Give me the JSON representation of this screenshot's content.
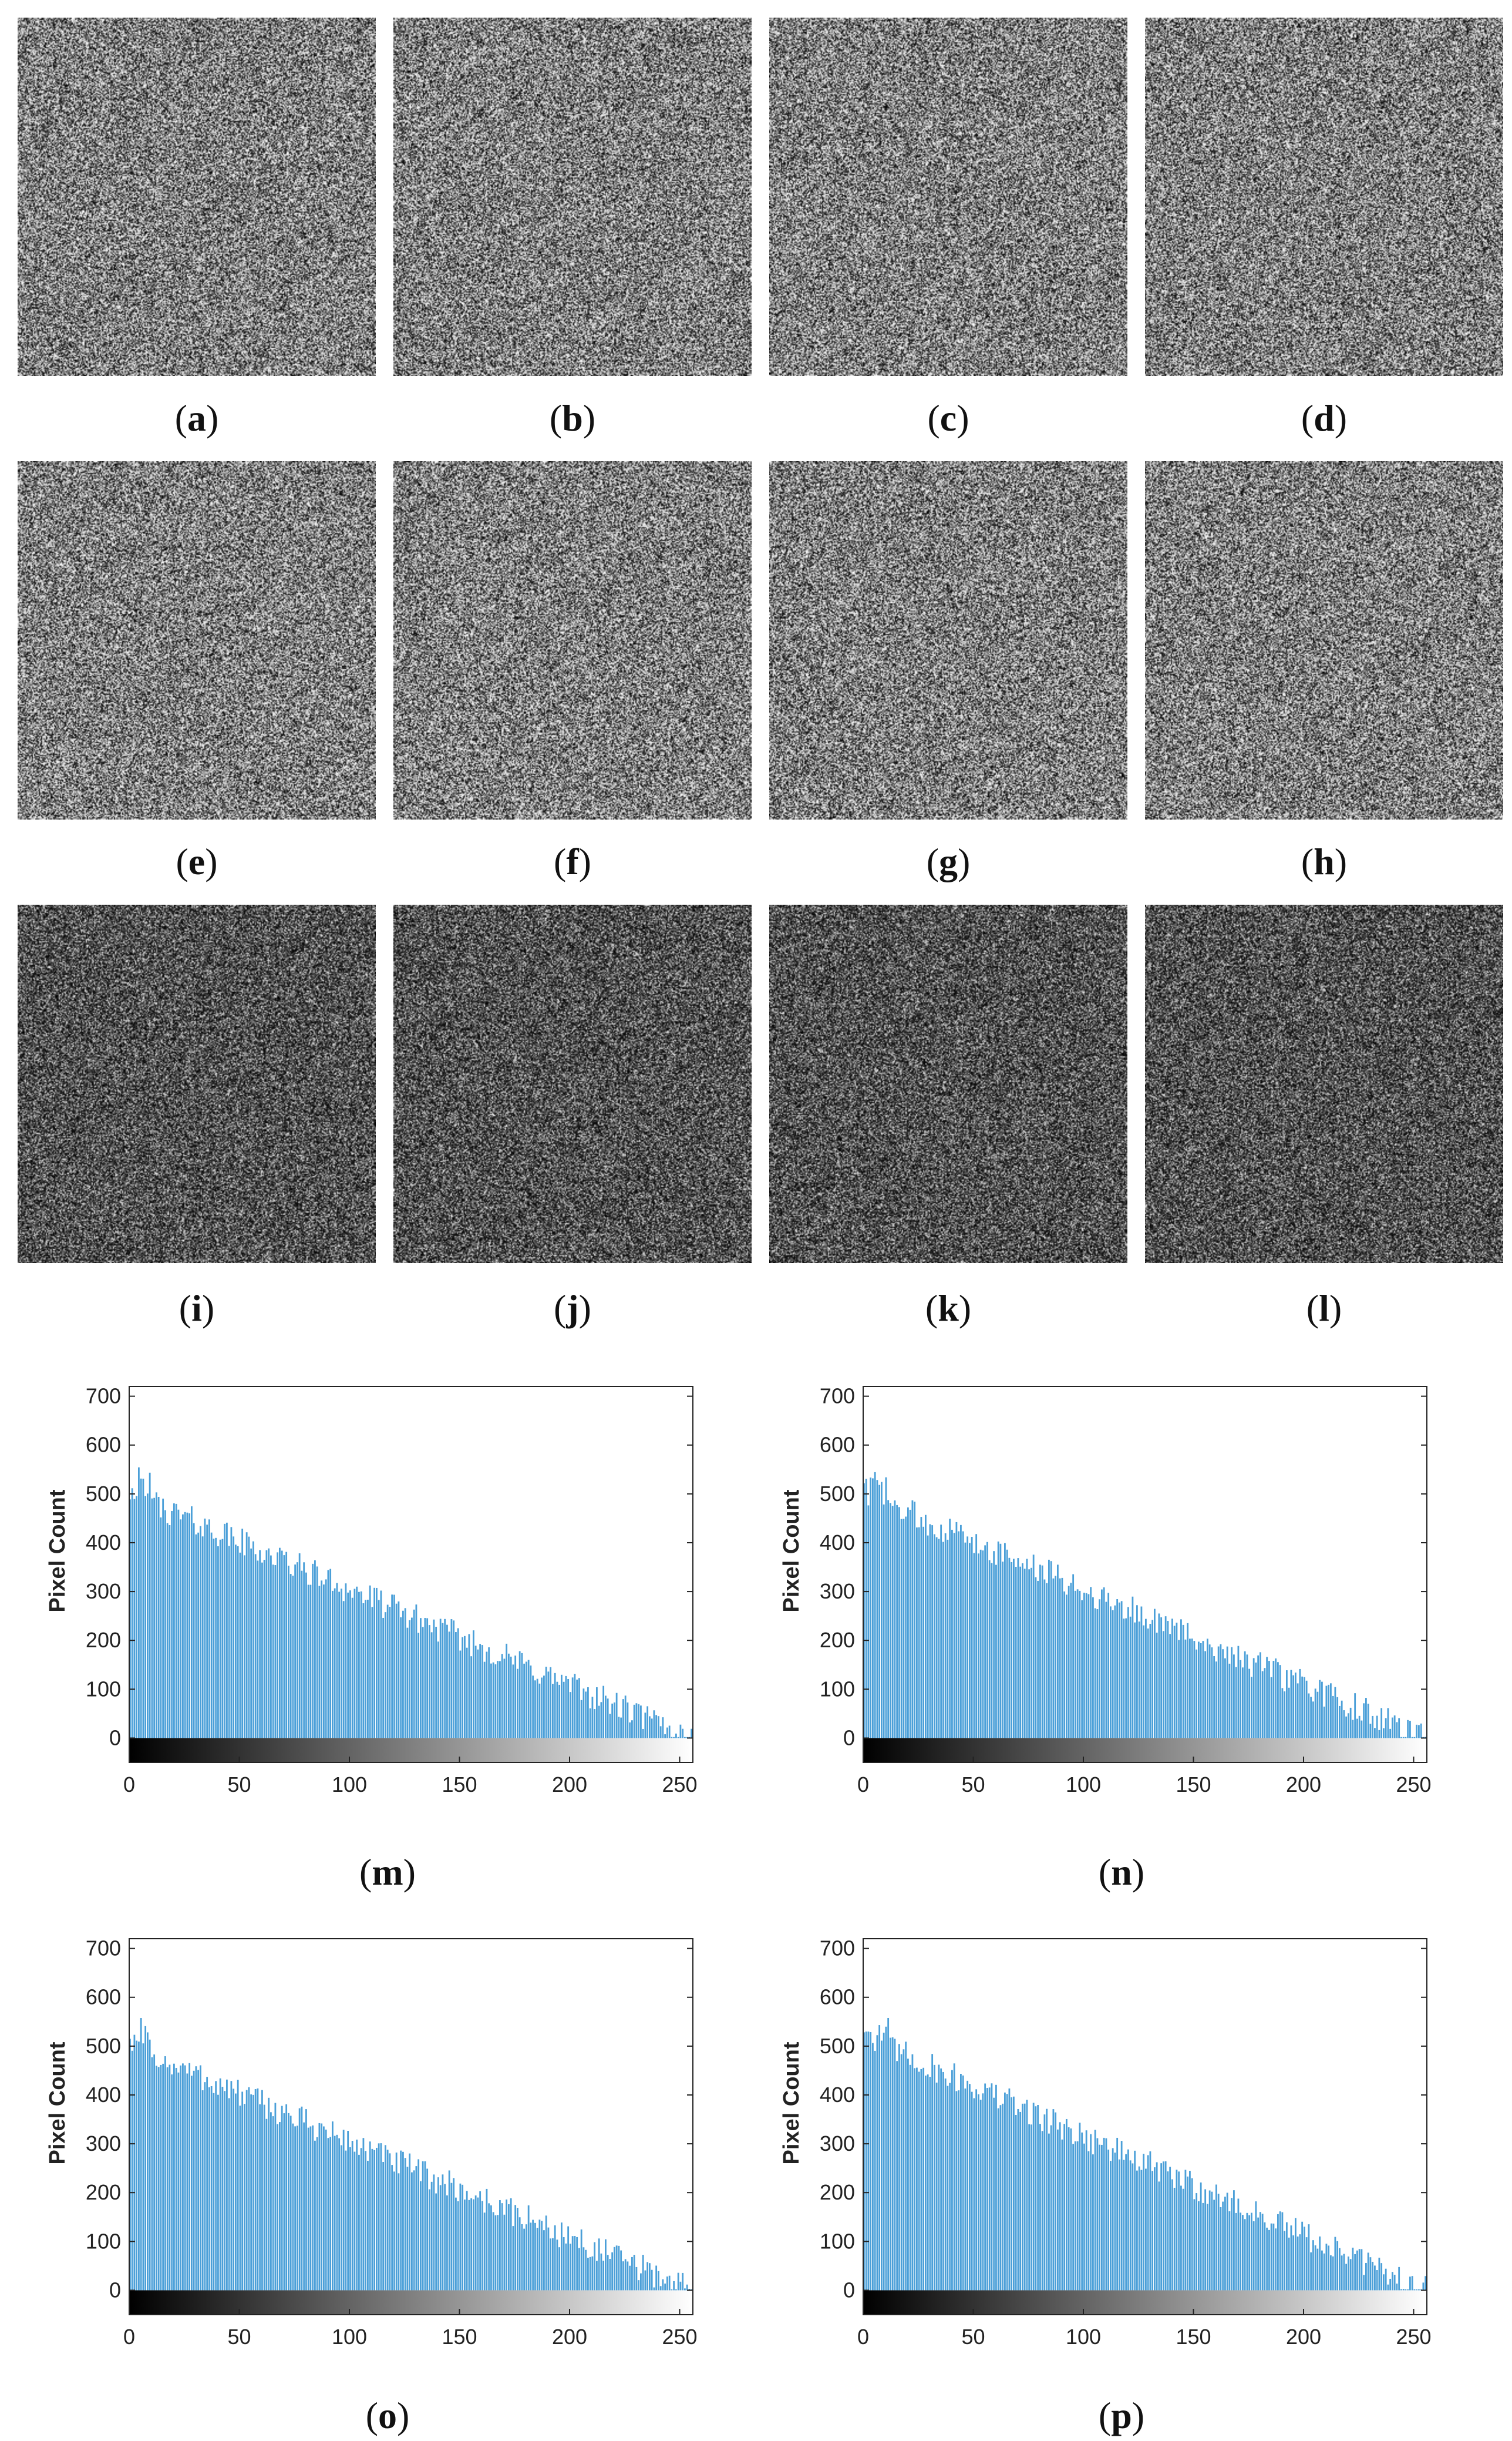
{
  "panels": [
    {
      "label": "a",
      "tone": "mid"
    },
    {
      "label": "b",
      "tone": "mid"
    },
    {
      "label": "c",
      "tone": "mid"
    },
    {
      "label": "d",
      "tone": "mid"
    },
    {
      "label": "e",
      "tone": "mid"
    },
    {
      "label": "f",
      "tone": "mid"
    },
    {
      "label": "g",
      "tone": "mid"
    },
    {
      "label": "h",
      "tone": "mid"
    },
    {
      "label": "i",
      "tone": "dark"
    },
    {
      "label": "j",
      "tone": "dark"
    },
    {
      "label": "k",
      "tone": "dark"
    },
    {
      "label": "l",
      "tone": "dark"
    }
  ],
  "colors": {
    "bar": "#4a9fd8",
    "axis": "#222222",
    "text": "#111111"
  },
  "chart_data": [
    {
      "type": "bar",
      "label": "m",
      "ylabel": "Pixel Count",
      "xlabel": "",
      "xlim": [
        0,
        255
      ],
      "ylim": [
        -50,
        720
      ],
      "xticks": [
        0,
        50,
        100,
        150,
        200,
        250
      ],
      "yticks": [
        0,
        100,
        200,
        300,
        400,
        500,
        600,
        700
      ],
      "colorbar": "grayscale 0-255 below axis",
      "shape": {
        "start": 500,
        "end": 0,
        "bins": 256
      },
      "note_peaks": [
        [
          3,
          540
        ],
        [
          10,
          515
        ],
        [
          60,
          430
        ],
        [
          100,
          395
        ],
        [
          150,
          280
        ],
        [
          200,
          130
        ],
        [
          250,
          15
        ]
      ]
    },
    {
      "type": "bar",
      "label": "n",
      "ylabel": "Pixel Count",
      "xlabel": "",
      "xlim": [
        0,
        255
      ],
      "ylim": [
        -50,
        720
      ],
      "xticks": [
        0,
        50,
        100,
        150,
        200,
        250
      ],
      "yticks": [
        0,
        100,
        200,
        300,
        400,
        500,
        600,
        700
      ],
      "colorbar": "grayscale 0-255 below axis",
      "shape": {
        "start": 500,
        "end": 0,
        "bins": 256
      },
      "note_peaks": [
        [
          3,
          555
        ],
        [
          10,
          500
        ],
        [
          60,
          440
        ],
        [
          100,
          380
        ],
        [
          150,
          280
        ],
        [
          200,
          170
        ],
        [
          250,
          20
        ]
      ]
    },
    {
      "type": "bar",
      "label": "o",
      "ylabel": "Pixel Count",
      "xlabel": "",
      "xlim": [
        0,
        255
      ],
      "ylim": [
        -50,
        720
      ],
      "xticks": [
        0,
        50,
        100,
        150,
        200,
        250
      ],
      "yticks": [
        0,
        100,
        200,
        300,
        400,
        500,
        600,
        700
      ],
      "colorbar": "grayscale 0-255 below axis",
      "shape": {
        "start": 500,
        "end": 0,
        "bins": 256
      },
      "note_peaks": [
        [
          1,
          545
        ],
        [
          15,
          525
        ],
        [
          60,
          430
        ],
        [
          100,
          360
        ],
        [
          150,
          260
        ],
        [
          200,
          140
        ],
        [
          250,
          15
        ]
      ]
    },
    {
      "type": "bar",
      "label": "p",
      "ylabel": "Pixel Count",
      "xlabel": "",
      "xlim": [
        0,
        255
      ],
      "ylim": [
        -50,
        720
      ],
      "xticks": [
        0,
        50,
        100,
        150,
        200,
        250
      ],
      "yticks": [
        0,
        100,
        200,
        300,
        400,
        500,
        600,
        700
      ],
      "colorbar": "grayscale 0-255 below axis",
      "shape": {
        "start": 520,
        "end": 0,
        "bins": 256
      },
      "note_peaks": [
        [
          2,
          545
        ],
        [
          20,
          490
        ],
        [
          60,
          430
        ],
        [
          100,
          370
        ],
        [
          150,
          270
        ],
        [
          200,
          150
        ],
        [
          250,
          20
        ]
      ]
    }
  ]
}
